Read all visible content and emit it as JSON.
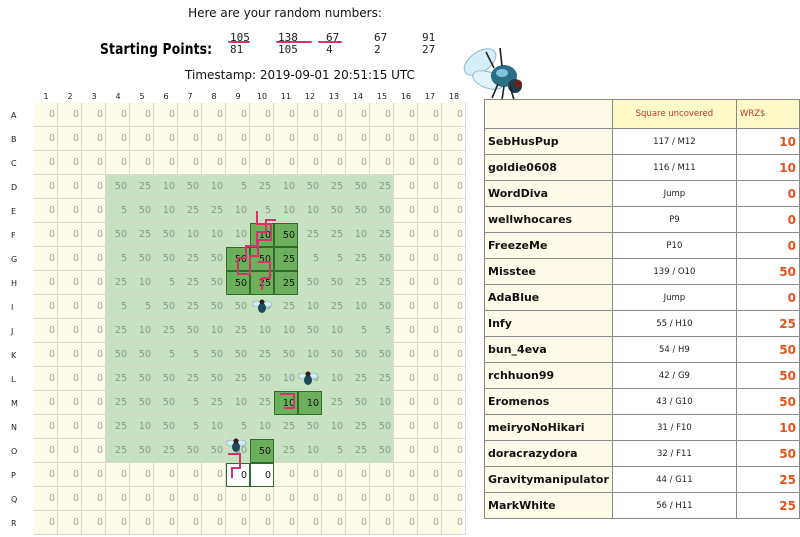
{
  "header": {
    "title": "Here are your random numbers:",
    "starting_label": "Starting Points:",
    "timestamp": "Timestamp: 2019-09-01 20:51:15 UTC",
    "numbers_row1": [
      "105",
      "138",
      "67",
      "67",
      "91"
    ],
    "numbers_row2": [
      "81",
      "105",
      "4",
      "2",
      "27"
    ]
  },
  "grid": {
    "columns": [
      "1",
      "2",
      "3",
      "4",
      "5",
      "6",
      "7",
      "8",
      "9",
      "10",
      "11",
      "12",
      "13",
      "14",
      "15",
      "16",
      "17",
      "18"
    ],
    "rows": [
      "A",
      "B",
      "C",
      "D",
      "E",
      "F",
      "G",
      "H",
      "I",
      "J",
      "K",
      "L",
      "M",
      "N",
      "O",
      "P",
      "Q",
      "R"
    ],
    "values": [
      [
        "0",
        "0",
        "0",
        "0",
        "0",
        "0",
        "0",
        "0",
        "0",
        "0",
        "0",
        "0",
        "0",
        "0",
        "0",
        "0",
        "0",
        "0"
      ],
      [
        "0",
        "0",
        "0",
        "0",
        "0",
        "0",
        "0",
        "0",
        "0",
        "0",
        "0",
        "0",
        "0",
        "0",
        "0",
        "0",
        "0",
        "0"
      ],
      [
        "0",
        "0",
        "0",
        "0",
        "0",
        "0",
        "0",
        "0",
        "0",
        "0",
        "0",
        "0",
        "0",
        "0",
        "0",
        "0",
        "0",
        "0"
      ],
      [
        "0",
        "0",
        "0",
        "50",
        "25",
        "10",
        "50",
        "10",
        "5",
        "25",
        "10",
        "50",
        "25",
        "50",
        "25",
        "0",
        "0",
        "0"
      ],
      [
        "0",
        "0",
        "0",
        "5",
        "50",
        "10",
        "25",
        "25",
        "10",
        "5",
        "10",
        "10",
        "50",
        "50",
        "50",
        "0",
        "0",
        "0"
      ],
      [
        "0",
        "0",
        "0",
        "50",
        "25",
        "50",
        "10",
        "10",
        "10",
        "10",
        "50",
        "25",
        "25",
        "10",
        "25",
        "0",
        "0",
        "0"
      ],
      [
        "0",
        "0",
        "0",
        "5",
        "50",
        "50",
        "25",
        "50",
        "50",
        "50",
        "25",
        "5",
        "5",
        "25",
        "50",
        "0",
        "0",
        "0"
      ],
      [
        "0",
        "0",
        "0",
        "25",
        "10",
        "5",
        "25",
        "50",
        "50",
        "25",
        "25",
        "50",
        "50",
        "25",
        "25",
        "0",
        "0",
        "0"
      ],
      [
        "0",
        "0",
        "0",
        "5",
        "5",
        "50",
        "25",
        "50",
        "50",
        "10",
        "25",
        "10",
        "25",
        "10",
        "50",
        "0",
        "0",
        "0"
      ],
      [
        "0",
        "0",
        "0",
        "25",
        "10",
        "25",
        "50",
        "10",
        "25",
        "10",
        "10",
        "50",
        "10",
        "5",
        "5",
        "0",
        "0",
        "0"
      ],
      [
        "0",
        "0",
        "0",
        "50",
        "50",
        "5",
        "5",
        "50",
        "50",
        "25",
        "50",
        "10",
        "50",
        "50",
        "50",
        "0",
        "0",
        "0"
      ],
      [
        "0",
        "0",
        "0",
        "25",
        "50",
        "50",
        "25",
        "50",
        "25",
        "50",
        "10",
        "50",
        "10",
        "25",
        "25",
        "0",
        "0",
        "0"
      ],
      [
        "0",
        "0",
        "0",
        "25",
        "50",
        "50",
        "5",
        "25",
        "10",
        "25",
        "10",
        "10",
        "25",
        "50",
        "10",
        "0",
        "0",
        "0"
      ],
      [
        "0",
        "0",
        "0",
        "25",
        "10",
        "50",
        "5",
        "10",
        "5",
        "10",
        "25",
        "50",
        "10",
        "25",
        "50",
        "0",
        "0",
        "0"
      ],
      [
        "0",
        "0",
        "0",
        "25",
        "50",
        "25",
        "50",
        "50",
        "50",
        "50",
        "25",
        "10",
        "5",
        "25",
        "50",
        "0",
        "0",
        "0"
      ],
      [
        "0",
        "0",
        "0",
        "0",
        "0",
        "0",
        "0",
        "0",
        "0",
        "0",
        "0",
        "0",
        "0",
        "0",
        "0",
        "0",
        "0",
        "0"
      ],
      [
        "0",
        "0",
        "0",
        "0",
        "0",
        "0",
        "0",
        "0",
        "0",
        "0",
        "0",
        "0",
        "0",
        "0",
        "0",
        "0",
        "0",
        "0"
      ],
      [
        "0",
        "0",
        "0",
        "0",
        "0",
        "0",
        "0",
        "0",
        "0",
        "0",
        "0",
        "0",
        "0",
        "0",
        "0",
        "0",
        "0",
        "0"
      ]
    ]
  },
  "table": {
    "header_square": "Square uncovered",
    "header_value": "WRZ$",
    "rows": [
      {
        "name": "SebHusPup",
        "square": "117 / M12",
        "value": "10"
      },
      {
        "name": "goldie0608",
        "square": "116 / M11",
        "value": "10"
      },
      {
        "name": "WordDiva",
        "square": "Jump",
        "value": "0"
      },
      {
        "name": "wellwhocares",
        "square": "P9",
        "value": "0"
      },
      {
        "name": "FreezeMe",
        "square": "P10",
        "value": "0"
      },
      {
        "name": "Misstee",
        "square": "139 / O10",
        "value": "50"
      },
      {
        "name": "AdaBlue",
        "square": "Jump",
        "value": "0"
      },
      {
        "name": "Infy",
        "square": "55 / H10",
        "value": "25"
      },
      {
        "name": "bun_4eva",
        "square": "54 / H9",
        "value": "50"
      },
      {
        "name": "rchhuon99",
        "square": "42 / G9",
        "value": "50"
      },
      {
        "name": "Eromenos",
        "square": "43 / G10",
        "value": "50"
      },
      {
        "name": "meiryoNoHikari",
        "square": "31 / F10",
        "value": "10"
      },
      {
        "name": "doracrazydora",
        "square": "32 / F11",
        "value": "50"
      },
      {
        "name": "Gravitymanipulator",
        "square": "44 / G11",
        "value": "25"
      },
      {
        "name": "MarkWhite",
        "square": "56 / H11",
        "value": "25"
      }
    ]
  },
  "icons": [
    "fly-icon"
  ]
}
